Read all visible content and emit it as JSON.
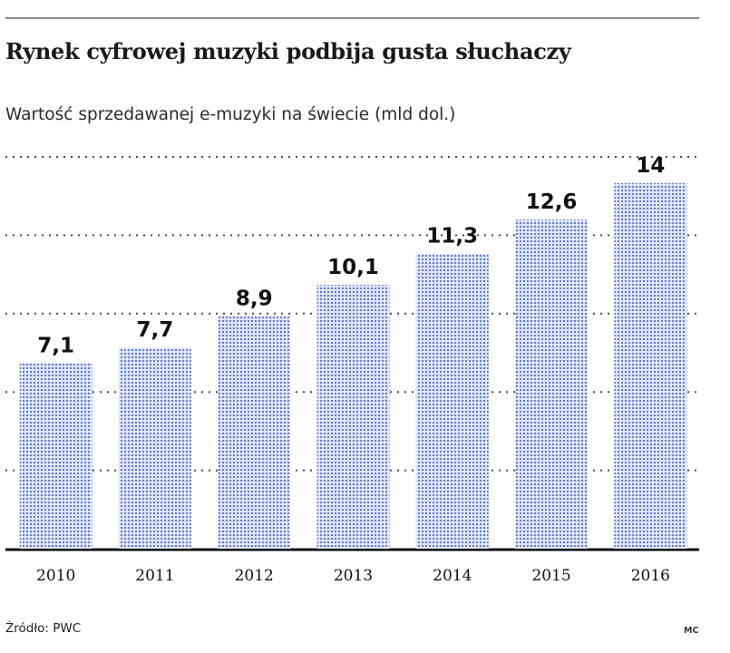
{
  "title": "Rynek cyfrowej muzyki podbija gusta słuchaczy",
  "subtitle": "Wartość sprzedawanej e-muzyki na świecie (mld dol.)",
  "source": "Źródło: PWC",
  "author": "MC",
  "colors": {
    "bar": "#5b78dc",
    "bar_dot_bg": "#dfe5fa",
    "grid": "#4a4a4a",
    "baseline": "#111111"
  },
  "chart_data": {
    "type": "bar",
    "categories": [
      "2010",
      "2011",
      "2012",
      "2013",
      "2014",
      "2015",
      "2016"
    ],
    "values": [
      7.1,
      7.7,
      8.9,
      10.1,
      11.3,
      12.6,
      14
    ],
    "value_labels": [
      "7,1",
      "7,7",
      "8,9",
      "10,1",
      "11,3",
      "12,6",
      "14"
    ],
    "ylim": [
      0,
      15
    ],
    "grid": true,
    "legend": "none"
  }
}
